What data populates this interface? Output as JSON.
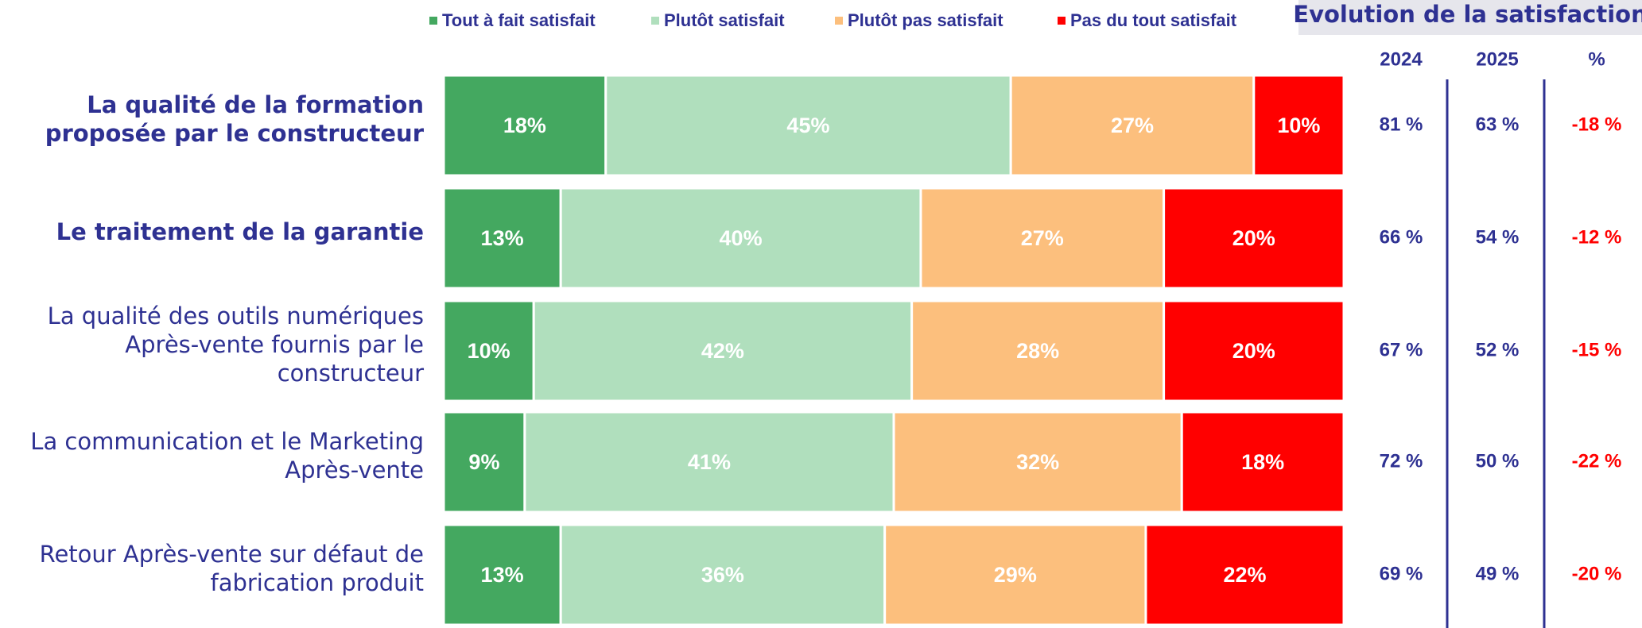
{
  "chart_data": {
    "type": "stacked_barh",
    "categories": [
      "La qualité de la formation proposée par le constructeur",
      "Le traitement de la garantie",
      "La qualité des outils numériques Après-vente fournis par le constructeur",
      "La communication et le Marketing Après-vente",
      "Retour Après-vente sur défaut de fabrication produit"
    ],
    "series": [
      {
        "name": "Tout à fait satisfait",
        "color": "#44a860",
        "values": [
          18,
          13,
          10,
          9,
          13
        ],
        "value_labels": [
          "18%",
          "13%",
          "10%",
          "9%",
          "13%"
        ]
      },
      {
        "name": "Plutôt satisfait",
        "color": "#b0dfbd",
        "values": [
          45,
          40,
          42,
          41,
          36
        ],
        "value_labels": [
          "45%",
          "40%",
          "42%",
          "41%",
          "36%"
        ]
      },
      {
        "name": "Plutôt pas satisfait",
        "color": "#fcbf7d",
        "values": [
          27,
          27,
          28,
          32,
          29
        ],
        "value_labels": [
          "27%",
          "27%",
          "28%",
          "32%",
          "29%"
        ]
      },
      {
        "name": "Pas du tout satisfait",
        "color": "#ff0000",
        "values": [
          10,
          20,
          20,
          18,
          22
        ],
        "value_labels": [
          "10%",
          "20%",
          "20%",
          "18%",
          "22%"
        ]
      }
    ],
    "xlim": [
      0,
      100
    ]
  },
  "table": {
    "title": "Evolution de la satisfaction",
    "columns": [
      "2024",
      "2025",
      "%"
    ],
    "rows": [
      [
        "81 %",
        "63 %",
        "-18 %"
      ],
      [
        "66 %",
        "54 %",
        "-12 %"
      ],
      [
        "67 %",
        "52 %",
        "-15 %"
      ],
      [
        "72 %",
        "50 %",
        "-22 %"
      ],
      [
        "69 %",
        "49 %",
        "-20 %"
      ]
    ]
  }
}
